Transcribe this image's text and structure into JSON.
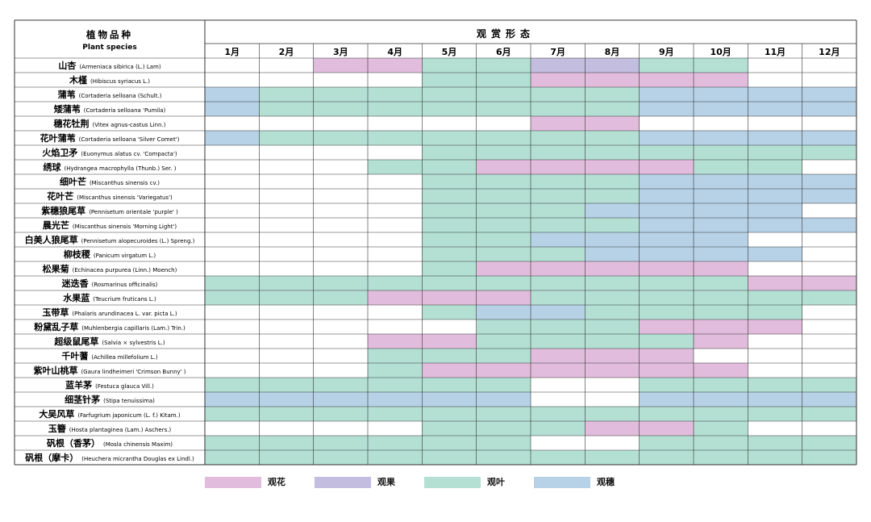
{
  "chart_data": {
    "type": "table",
    "header": {
      "species_zh": "植物品种",
      "species_en": "Plant species",
      "title": "观赏形态"
    },
    "months": [
      "1月",
      "2月",
      "3月",
      "4月",
      "5月",
      "6月",
      "7月",
      "8月",
      "9月",
      "10月",
      "11月",
      "12月"
    ],
    "categories": [
      {
        "key": "f",
        "label": "观花",
        "color": "#e2bcdc"
      },
      {
        "key": "r",
        "label": "观果",
        "color": "#c3bde0"
      },
      {
        "key": "l",
        "label": "观叶",
        "color": "#b4e0d4"
      },
      {
        "key": "s",
        "label": "观穗",
        "color": "#b7d2e7"
      }
    ],
    "rows": [
      {
        "zh": "山杏",
        "sci": "(Armeniaca sibirica (L.) Lam)",
        "months": [
          "",
          "",
          "f",
          "f",
          "l",
          "l",
          "r",
          "r",
          "l",
          "l",
          "",
          ""
        ]
      },
      {
        "zh": "木槿",
        "sci": "(Hibiscus syriacus L.)",
        "months": [
          "",
          "",
          "",
          "",
          "l",
          "l",
          "f",
          "f",
          "f",
          "f",
          "",
          ""
        ]
      },
      {
        "zh": "蒲苇",
        "sci": "(Cortaderia selloana (Schult.)",
        "months": [
          "s",
          "l",
          "l",
          "l",
          "l",
          "l",
          "l",
          "l",
          "s",
          "s",
          "s",
          "s"
        ]
      },
      {
        "zh": "矮蒲苇",
        "sci": "(Cortaderia selloana 'Pumila)",
        "months": [
          "s",
          "l",
          "l",
          "l",
          "l",
          "l",
          "l",
          "l",
          "s",
          "s",
          "s",
          "s"
        ]
      },
      {
        "zh": "穗花牡荆",
        "sci": "(Vitex agnus-castus Linn.)",
        "months": [
          "",
          "",
          "",
          "",
          "",
          "",
          "f",
          "f",
          "",
          "",
          "",
          ""
        ]
      },
      {
        "zh": "花叶蒲苇",
        "sci": "(Cortaderia selloana 'Silver Comet')",
        "months": [
          "s",
          "l",
          "l",
          "l",
          "l",
          "l",
          "l",
          "l",
          "s",
          "s",
          "s",
          "s"
        ]
      },
      {
        "zh": "火焰卫矛",
        "sci": "(Euonymus alatus cv. 'Compacta')",
        "months": [
          "",
          "",
          "",
          "",
          "l",
          "l",
          "l",
          "l",
          "l",
          "l",
          "l",
          "l"
        ]
      },
      {
        "zh": "绣球",
        "sci": "(Hydrangea macrophylla (Thunb.) Ser. )",
        "months": [
          "",
          "",
          "",
          "l",
          "l",
          "f",
          "f",
          "f",
          "f",
          "l",
          "l",
          ""
        ]
      },
      {
        "zh": "细叶芒",
        "sci": "(Miscanthus sinensis cv.)",
        "months": [
          "",
          "",
          "",
          "",
          "l",
          "l",
          "l",
          "l",
          "s",
          "s",
          "s",
          "s"
        ]
      },
      {
        "zh": "花叶芒",
        "sci": "(Miscanthus sinensis 'Variegatus')",
        "months": [
          "",
          "",
          "",
          "",
          "l",
          "l",
          "l",
          "l",
          "s",
          "s",
          "s",
          "s"
        ]
      },
      {
        "zh": "紫穗狼尾草",
        "sci": "(Pennisetum orientale 'purple' )",
        "months": [
          "",
          "",
          "",
          "",
          "l",
          "l",
          "l",
          "s",
          "s",
          "s",
          "s",
          ""
        ]
      },
      {
        "zh": "晨光芒",
        "sci": "(Miscanthus sinensis 'Morning Light')",
        "months": [
          "",
          "",
          "",
          "",
          "l",
          "l",
          "l",
          "l",
          "s",
          "s",
          "s",
          "s"
        ]
      },
      {
        "zh": "白美人狼尾草",
        "sci": "(Pennisetum alopecuroides (L.) Spreng.)",
        "months": [
          "",
          "",
          "",
          "",
          "l",
          "l",
          "s",
          "s",
          "s",
          "s",
          "",
          ""
        ]
      },
      {
        "zh": "柳枝稷",
        "sci": "(Panicum virgatum L.)",
        "months": [
          "",
          "",
          "",
          "",
          "l",
          "l",
          "l",
          "s",
          "s",
          "s",
          "s",
          ""
        ]
      },
      {
        "zh": "松果菊",
        "sci": "(Echinacea purpurea (Linn.) Moench)",
        "months": [
          "",
          "",
          "",
          "",
          "l",
          "f",
          "f",
          "f",
          "f",
          "f",
          "",
          ""
        ]
      },
      {
        "zh": "迷迭香",
        "sci": "(Rosmarinus officinalis)",
        "months": [
          "l",
          "l",
          "l",
          "l",
          "l",
          "l",
          "l",
          "l",
          "l",
          "l",
          "f",
          "f"
        ]
      },
      {
        "zh": "水果蓝",
        "sci": "(Teucrium fruticans L.)",
        "months": [
          "l",
          "l",
          "l",
          "f",
          "f",
          "f",
          "l",
          "l",
          "l",
          "l",
          "l",
          "l"
        ]
      },
      {
        "zh": "玉带草",
        "sci": "(Phalaris arundinacea L. var. picta L.)",
        "months": [
          "",
          "",
          "",
          "",
          "l",
          "s",
          "s",
          "l",
          "l",
          "l",
          "l",
          ""
        ]
      },
      {
        "zh": "粉黛乱子草",
        "sci": "(Muhlenbergia capillaris (Lam.) Trin.)",
        "months": [
          "",
          "",
          "",
          "",
          "",
          "l",
          "l",
          "l",
          "f",
          "f",
          "f",
          ""
        ]
      },
      {
        "zh": "超级鼠尾草",
        "sci": "(Salvia × sylvestris L.)",
        "months": [
          "",
          "",
          "",
          "f",
          "f",
          "l",
          "l",
          "l",
          "l",
          "f",
          "",
          ""
        ]
      },
      {
        "zh": "千叶蓍",
        "sci": "(Achillea millefolium L.)",
        "months": [
          "",
          "",
          "",
          "l",
          "l",
          "l",
          "f",
          "f",
          "f",
          "",
          "",
          ""
        ]
      },
      {
        "zh": "紫叶山桃草",
        "sci": "(Gaura lindheimeri 'Crimson Bunny' )",
        "months": [
          "",
          "",
          "",
          "l",
          "f",
          "f",
          "f",
          "f",
          "f",
          "f",
          "",
          ""
        ]
      },
      {
        "zh": "蓝羊茅",
        "sci": "(Festuca glauca Vill.)",
        "months": [
          "l",
          "l",
          "l",
          "l",
          "l",
          "l",
          "",
          "",
          "l",
          "l",
          "l",
          "l"
        ]
      },
      {
        "zh": "细茎针茅",
        "sci": "(Stipa tenuissima)",
        "months": [
          "s",
          "s",
          "s",
          "s",
          "s",
          "s",
          "",
          "",
          "s",
          "s",
          "s",
          "s"
        ]
      },
      {
        "zh": "大吴风草",
        "sci": "(Farfugrium japonicum (L. f.) Kitam.)",
        "months": [
          "l",
          "l",
          "l",
          "l",
          "l",
          "l",
          "l",
          "l",
          "l",
          "l",
          "l",
          "l"
        ]
      },
      {
        "zh": "玉簪",
        "sci": "(Hosta plantaginea (Lam.) Aschers.)",
        "months": [
          "",
          "",
          "",
          "",
          "l",
          "l",
          "l",
          "f",
          "f",
          "l",
          "",
          ""
        ]
      },
      {
        "zh": "矾根（香茅）",
        "sci": "(Mosla chinensis Maxim)",
        "months": [
          "l",
          "l",
          "l",
          "l",
          "l",
          "l",
          "",
          "",
          "l",
          "l",
          "l",
          "l"
        ]
      },
      {
        "zh": "矾根（摩卡）",
        "sci": "(Heuchera micrantha Douglas ex Lindl.)",
        "months": [
          "l",
          "l",
          "l",
          "l",
          "l",
          "l",
          "l",
          "l",
          "l",
          "l",
          "l",
          "l"
        ]
      }
    ]
  }
}
